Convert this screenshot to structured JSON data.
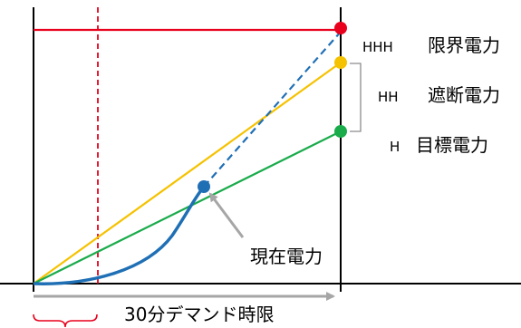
{
  "levels": {
    "hhh": {
      "code": "HHH",
      "name": "限界電力",
      "color": "#e8001c"
    },
    "hh": {
      "code": "HH",
      "name": "遮断電力",
      "color": "#f5c200"
    },
    "h": {
      "code": "H",
      "name": "目標電力",
      "color": "#1aab4b"
    }
  },
  "current": {
    "label": "現在電力",
    "color": "#1f6fb5"
  },
  "time_axis": {
    "label": "30分デマンド時限"
  },
  "colors": {
    "axis": "#000000",
    "arrow": "#a6a6a6",
    "dashed_marker": "#e8001c"
  }
}
